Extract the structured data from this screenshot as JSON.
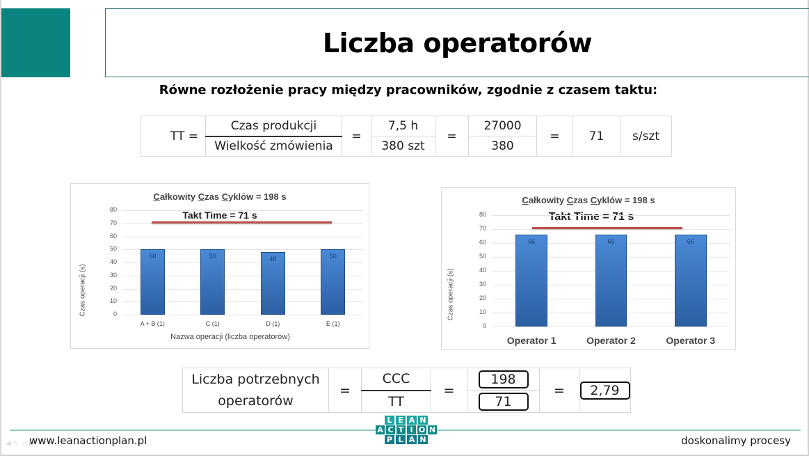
{
  "slide": {
    "title": "Liczba operatorów",
    "subtitle": "Równe rozłożenie pracy między pracowników, zgodnie z czasem taktu:",
    "accent_color": "#0b847f"
  },
  "takt_formula": {
    "label": "TT =",
    "numerator_label": "Czas produkcji",
    "denominator_label": "Wielkość zmówienia",
    "eq1": "=",
    "numerator_value": "7,5 h",
    "denominator_value": "380 szt",
    "eq2": "=",
    "numerator_seconds": "27000",
    "denominator_count": "380",
    "eq3": "=",
    "result": "71",
    "unit": "s/szt"
  },
  "operators_formula": {
    "label_line1": "Liczba potrzebnych",
    "label_line2": "operatorów",
    "eq1": "=",
    "numerator_label": "CCC",
    "denominator_label": "TT",
    "eq2": "=",
    "numerator_value": "198",
    "denominator_value": "71",
    "eq3": "=",
    "result": "2,79"
  },
  "chart_data": [
    {
      "type": "bar",
      "title": "Całkowity Czas Cyklów = 198 s",
      "title_parts": [
        "C",
        "ałkowity ",
        "C",
        "zas ",
        "C",
        "yklów = 198 s"
      ],
      "annotation": "Takt Time = 71 s",
      "takt_line_value": 71,
      "categories": [
        "A + B (1)",
        "C (1)",
        "D (1)",
        "E (1)"
      ],
      "values": [
        50,
        50,
        48,
        50
      ],
      "xlabel": "Nazwa operacji (liczba operatorów)",
      "ylabel": "Czas operacji (s)",
      "ylim": [
        0,
        80
      ],
      "yticks": [
        "80",
        "70",
        "60",
        "50",
        "40",
        "30",
        "20",
        "10",
        "0"
      ],
      "grid": true,
      "bar_color": "#3a74c0",
      "takt_line_color": "#c0504d"
    },
    {
      "type": "bar",
      "title": "Całkowity Czas Cyklów = 198 s",
      "title_parts": [
        "C",
        "ałkowity ",
        "C",
        "zas ",
        "C",
        "yklów = 198 s"
      ],
      "annotation": "Takt Time = 71 s",
      "takt_line_value": 71,
      "categories": [
        "Operator 1",
        "Operator 2",
        "Operator 3"
      ],
      "values": [
        66,
        66,
        66
      ],
      "xlabel": "",
      "ylabel": "Czas operacji (s)",
      "ylim": [
        0,
        80
      ],
      "yticks": [
        "80",
        "70",
        "60",
        "50",
        "40",
        "30",
        "20",
        "10",
        "0"
      ],
      "grid": true,
      "bar_color": "#3a74c0",
      "takt_line_color": "#c0504d"
    }
  ],
  "footer": {
    "website": "www.leanactionplan.pl",
    "tagline": "doskonalimy procesy",
    "logo_rows": [
      [
        "L",
        "E",
        "A",
        "N"
      ],
      [
        "A",
        "C",
        "T",
        "I",
        "O",
        "N"
      ],
      [
        "P",
        "L",
        "A",
        "N"
      ]
    ],
    "line_color": "#8ccac5"
  }
}
